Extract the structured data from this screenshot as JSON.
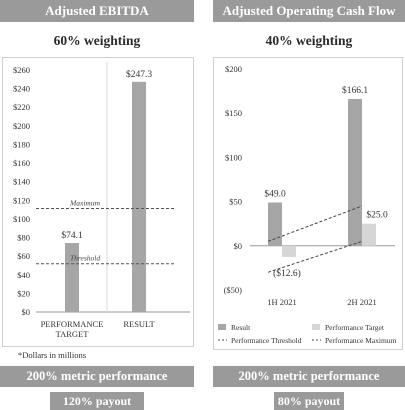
{
  "left_panel": {
    "title": "Adjusted EBITDA",
    "weighting": "60% weighting",
    "footnote": "*Dollars in millions",
    "metric_performance": "200% metric performance",
    "payout": "120% payout"
  },
  "right_panel": {
    "title": "Adjusted Operating Cash Flow",
    "weighting": "40% weighting",
    "metric_performance": "200% metric performance",
    "payout": "80% payout"
  },
  "chart_data": [
    {
      "type": "bar",
      "title": "Adjusted EBITDA",
      "categories": [
        "PERFORMANCE\nTARGET",
        "RESULT"
      ],
      "values": [
        74.1,
        247.3
      ],
      "value_labels": [
        "$74.1",
        "$247.3"
      ],
      "y_ticks": [
        "$0",
        "$20",
        "$40",
        "$60",
        "$80",
        "$100",
        "$120",
        "$140",
        "$160",
        "$180",
        "$200",
        "$220",
        "$240",
        "$260"
      ],
      "ylim": [
        0,
        260
      ],
      "reference_lines": [
        {
          "label": "Maximum",
          "value": 111.2,
          "style": "dashed"
        },
        {
          "label": "Threshold",
          "value": 51.9,
          "style": "dashed"
        }
      ],
      "colors": {
        "bar": "#a6a6a6",
        "line": "#555555"
      },
      "grid": false
    },
    {
      "type": "bar",
      "title": "Adjusted Operating Cash Flow",
      "categories": [
        "1H 2021",
        "2H 2021"
      ],
      "series": [
        {
          "name": "Result",
          "values": [
            49.0,
            166.1
          ],
          "labels": [
            "$49.0",
            "$166.1"
          ],
          "color": "#a6a6a6"
        },
        {
          "name": "Performance Target",
          "values": [
            -12.6,
            25.0
          ],
          "labels": [
            "($12.6)",
            "$25.0"
          ],
          "color": "#d6d6d6"
        }
      ],
      "lines": [
        {
          "name": "Performance Threshold",
          "values": [
            -30,
            5
          ],
          "style": "dashed"
        },
        {
          "name": "Performance Maximum",
          "values": [
            5,
            45
          ],
          "style": "dashed"
        }
      ],
      "y_ticks": [
        "($50)",
        "$0",
        "$50",
        "$100",
        "$150",
        "$200"
      ],
      "ylim": [
        -50,
        200
      ],
      "legend_position": "bottom",
      "grid": false
    }
  ]
}
